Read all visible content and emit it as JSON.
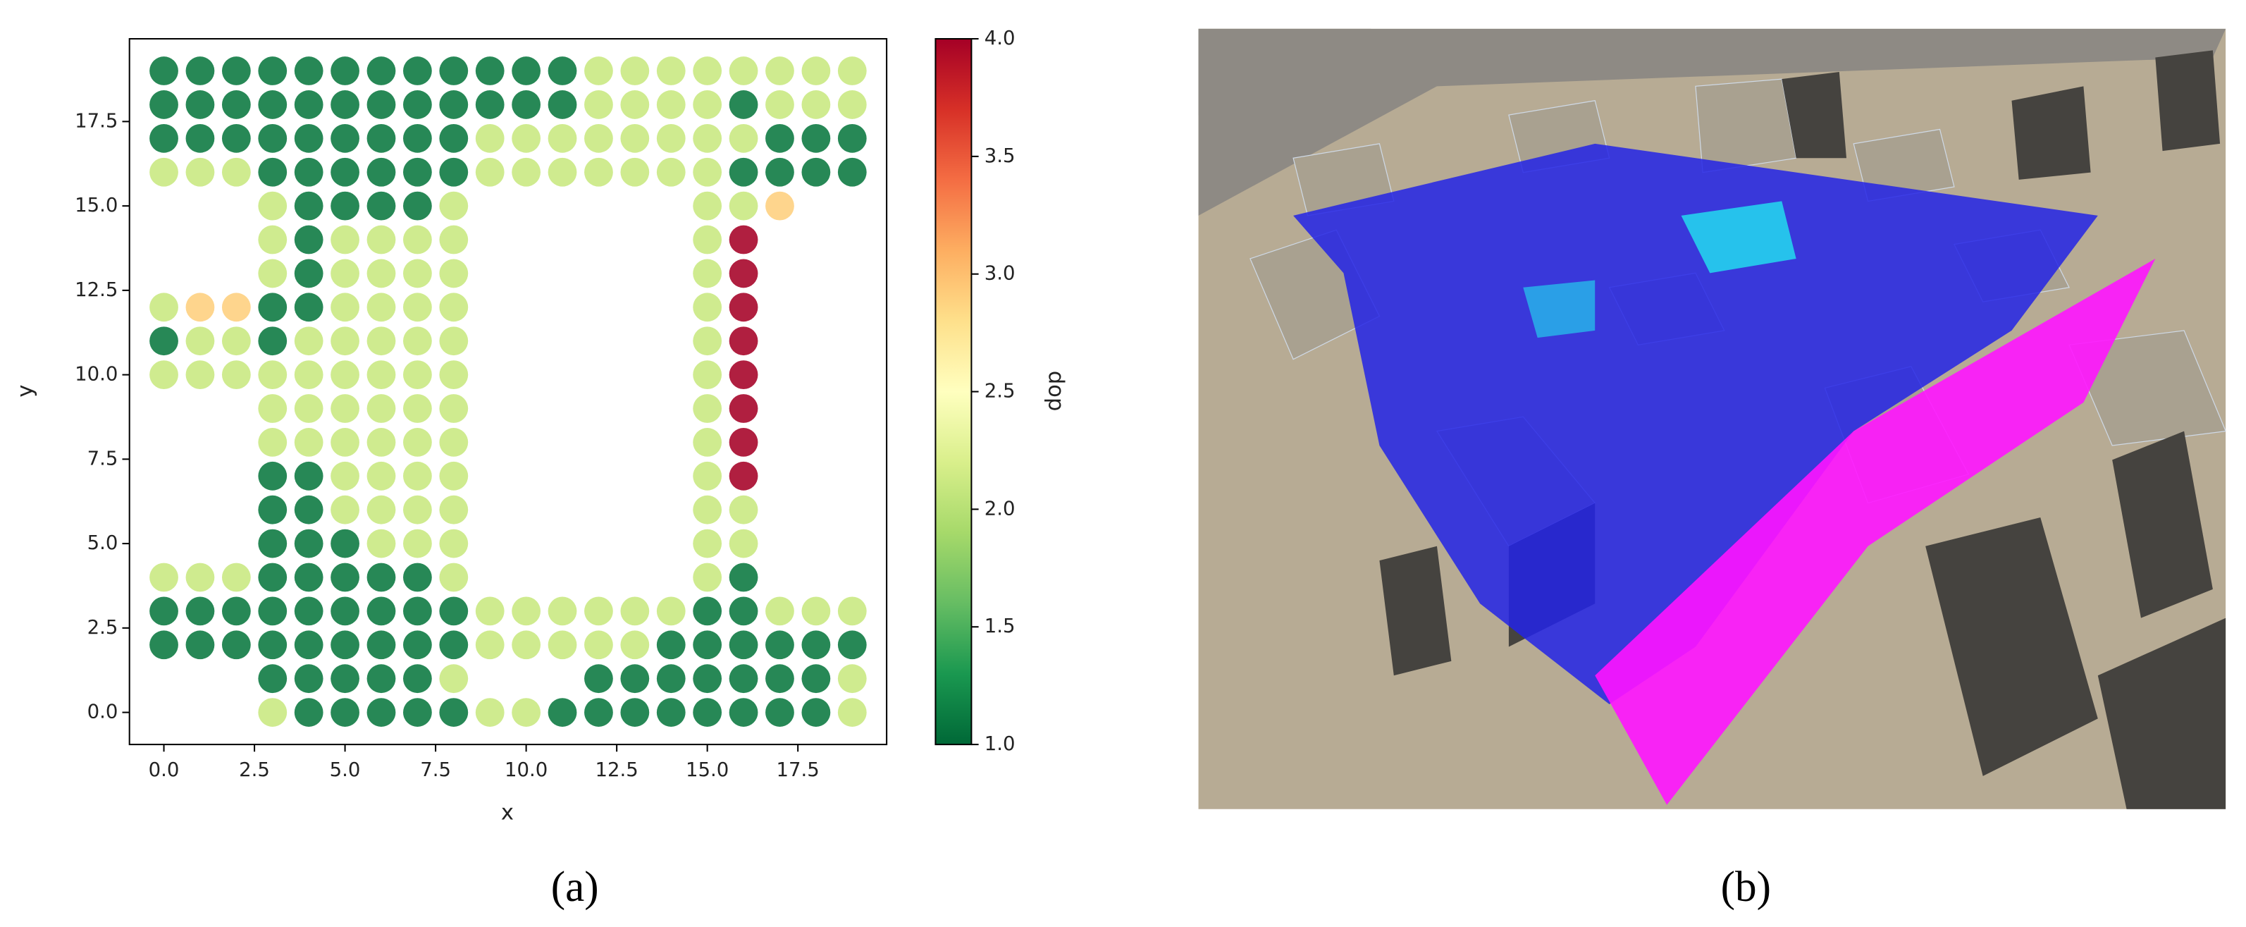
{
  "chart_data": {
    "type": "scatter",
    "xlabel": "x",
    "ylabel": "y",
    "xlim": [
      -0.95,
      19.95
    ],
    "ylim": [
      -0.95,
      19.95
    ],
    "xticks": [
      {
        "value": 0,
        "label": "0.0"
      },
      {
        "value": 2.5,
        "label": "2.5"
      },
      {
        "value": 5,
        "label": "5.0"
      },
      {
        "value": 7.5,
        "label": "7.5"
      },
      {
        "value": 10,
        "label": "10.0"
      },
      {
        "value": 12.5,
        "label": "12.5"
      },
      {
        "value": 15,
        "label": "15.0"
      },
      {
        "value": 17.5,
        "label": "17.5"
      }
    ],
    "yticks": [
      {
        "value": 0,
        "label": "0.0"
      },
      {
        "value": 2.5,
        "label": "2.5"
      },
      {
        "value": 5,
        "label": "5.0"
      },
      {
        "value": 7.5,
        "label": "7.5"
      },
      {
        "value": 10,
        "label": "10.0"
      },
      {
        "value": 12.5,
        "label": "12.5"
      },
      {
        "value": 15,
        "label": "15.0"
      },
      {
        "value": 17.5,
        "label": "17.5"
      }
    ],
    "colormap": "RdYlGn_r",
    "colorbar": {
      "label": "dop",
      "lim": [
        1,
        4
      ],
      "ticks": [
        {
          "value": 1,
          "label": "1.0"
        },
        {
          "value": 1.5,
          "label": "1.5"
        },
        {
          "value": 2,
          "label": "2.0"
        },
        {
          "value": 2.5,
          "label": "2.5"
        },
        {
          "value": 3,
          "label": "3.0"
        },
        {
          "value": 3.5,
          "label": "3.5"
        },
        {
          "value": 4,
          "label": "4.0"
        }
      ]
    },
    "x": [
      0,
      1,
      2,
      3,
      4,
      5,
      6,
      7,
      8,
      9,
      10,
      11,
      12,
      13,
      14,
      15,
      16,
      17,
      18,
      19,
      0,
      1,
      2,
      3,
      4,
      5,
      6,
      7,
      8,
      9,
      10,
      11,
      12,
      13,
      14,
      15,
      16,
      17,
      18,
      19,
      0,
      1,
      2,
      3,
      4,
      5,
      6,
      7,
      8,
      9,
      10,
      11,
      12,
      13,
      14,
      15,
      16,
      17,
      18,
      19,
      0,
      1,
      2,
      3,
      4,
      5,
      6,
      7,
      8,
      9,
      10,
      11,
      12,
      13,
      14,
      15,
      16,
      17,
      18,
      19,
      3,
      4,
      5,
      6,
      7,
      8,
      15,
      16,
      17,
      3,
      4,
      5,
      6,
      7,
      8,
      15,
      16,
      3,
      4,
      5,
      6,
      7,
      8,
      15,
      16,
      0,
      1,
      2,
      3,
      4,
      5,
      6,
      7,
      8,
      15,
      16,
      0,
      1,
      2,
      3,
      4,
      5,
      6,
      7,
      8,
      15,
      16,
      0,
      1,
      2,
      3,
      4,
      5,
      6,
      7,
      8,
      15,
      16,
      3,
      4,
      5,
      6,
      7,
      8,
      15,
      16,
      3,
      4,
      5,
      6,
      7,
      8,
      15,
      16,
      3,
      4,
      5,
      6,
      7,
      8,
      15,
      16,
      3,
      4,
      5,
      6,
      7,
      8,
      15,
      16,
      3,
      4,
      5,
      6,
      7,
      8,
      15,
      16,
      0,
      1,
      2,
      3,
      4,
      5,
      6,
      7,
      8,
      15,
      16,
      0,
      1,
      2,
      3,
      4,
      5,
      6,
      7,
      8,
      9,
      10,
      11,
      12,
      13,
      14,
      15,
      16,
      17,
      18,
      19,
      0,
      1,
      2,
      3,
      4,
      5,
      6,
      7,
      8,
      9,
      10,
      11,
      12,
      13,
      14,
      15,
      16,
      17,
      18,
      19,
      3,
      4,
      5,
      6,
      7,
      8,
      12,
      13,
      14,
      15,
      16,
      17,
      18,
      19,
      3,
      4,
      5,
      6,
      7,
      8,
      9,
      10,
      11,
      12,
      13,
      14,
      15,
      16,
      17,
      18,
      19
    ],
    "y": [
      19,
      19,
      19,
      19,
      19,
      19,
      19,
      19,
      19,
      19,
      19,
      19,
      19,
      19,
      19,
      19,
      19,
      19,
      19,
      19,
      18,
      18,
      18,
      18,
      18,
      18,
      18,
      18,
      18,
      18,
      18,
      18,
      18,
      18,
      18,
      18,
      18,
      18,
      18,
      18,
      17,
      17,
      17,
      17,
      17,
      17,
      17,
      17,
      17,
      17,
      17,
      17,
      17,
      17,
      17,
      17,
      17,
      17,
      17,
      17,
      16,
      16,
      16,
      16,
      16,
      16,
      16,
      16,
      16,
      16,
      16,
      16,
      16,
      16,
      16,
      16,
      16,
      16,
      16,
      16,
      15,
      15,
      15,
      15,
      15,
      15,
      15,
      15,
      15,
      14,
      14,
      14,
      14,
      14,
      14,
      14,
      14,
      13,
      13,
      13,
      13,
      13,
      13,
      13,
      13,
      12,
      12,
      12,
      12,
      12,
      12,
      12,
      12,
      12,
      12,
      12,
      11,
      11,
      11,
      11,
      11,
      11,
      11,
      11,
      11,
      11,
      11,
      10,
      10,
      10,
      10,
      10,
      10,
      10,
      10,
      10,
      10,
      10,
      9,
      9,
      9,
      9,
      9,
      9,
      9,
      9,
      8,
      8,
      8,
      8,
      8,
      8,
      8,
      8,
      7,
      7,
      7,
      7,
      7,
      7,
      7,
      7,
      6,
      6,
      6,
      6,
      6,
      6,
      6,
      6,
      5,
      5,
      5,
      5,
      5,
      5,
      5,
      5,
      4,
      4,
      4,
      4,
      4,
      4,
      4,
      4,
      4,
      4,
      4,
      3,
      3,
      3,
      3,
      3,
      3,
      3,
      3,
      3,
      3,
      3,
      3,
      3,
      3,
      3,
      3,
      3,
      3,
      3,
      3,
      2,
      2,
      2,
      2,
      2,
      2,
      2,
      2,
      2,
      2,
      2,
      2,
      2,
      2,
      2,
      2,
      2,
      2,
      2,
      2,
      1,
      1,
      1,
      1,
      1,
      1,
      1,
      1,
      1,
      1,
      1,
      1,
      1,
      1,
      0,
      0,
      0,
      0,
      0,
      0,
      0,
      0,
      0,
      0,
      0,
      0,
      0,
      0,
      0,
      0,
      0
    ],
    "values": [
      1.1,
      1.1,
      1.1,
      1.1,
      1.1,
      1.1,
      1.1,
      1.1,
      1.1,
      1.1,
      1.1,
      1.1,
      2.1,
      2.1,
      2.1,
      2.1,
      2.1,
      2.1,
      2.1,
      2.1,
      1.1,
      1.1,
      1.1,
      1.1,
      1.1,
      1.1,
      1.1,
      1.1,
      1.1,
      1.1,
      1.1,
      1.1,
      2.1,
      2.1,
      2.1,
      2.1,
      1.1,
      2.1,
      2.1,
      2.1,
      1.1,
      1.1,
      1.1,
      1.1,
      1.1,
      1.1,
      1.1,
      1.1,
      1.1,
      2.1,
      2.1,
      2.1,
      2.1,
      2.1,
      2.1,
      2.1,
      2.1,
      1.1,
      1.1,
      1.1,
      2.1,
      2.1,
      2.1,
      1.1,
      1.1,
      1.1,
      1.1,
      1.1,
      1.1,
      2.1,
      2.1,
      2.1,
      2.1,
      2.1,
      2.1,
      2.1,
      1.1,
      1.1,
      1.1,
      1.1,
      2.1,
      1.1,
      1.1,
      1.1,
      1.1,
      2.1,
      2.1,
      2.1,
      2.9,
      2.1,
      1.1,
      2.1,
      2.1,
      2.1,
      2.1,
      2.1,
      4.0,
      2.1,
      1.1,
      2.1,
      2.1,
      2.1,
      2.1,
      2.1,
      4.0,
      2.1,
      2.9,
      2.9,
      1.1,
      1.1,
      2.1,
      2.1,
      2.1,
      2.1,
      2.1,
      4.0,
      1.1,
      2.1,
      2.1,
      1.1,
      2.1,
      2.1,
      2.1,
      2.1,
      2.1,
      2.1,
      4.0,
      2.1,
      2.1,
      2.1,
      2.1,
      2.1,
      2.1,
      2.1,
      2.1,
      2.1,
      2.1,
      4.0,
      2.1,
      2.1,
      2.1,
      2.1,
      2.1,
      2.1,
      2.1,
      4.0,
      2.1,
      2.1,
      2.1,
      2.1,
      2.1,
      2.1,
      2.1,
      4.0,
      1.1,
      1.1,
      2.1,
      2.1,
      2.1,
      2.1,
      2.1,
      4.0,
      1.1,
      1.1,
      2.1,
      2.1,
      2.1,
      2.1,
      2.1,
      2.1,
      1.1,
      1.1,
      1.1,
      2.1,
      2.1,
      2.1,
      2.1,
      2.1,
      2.1,
      2.1,
      2.1,
      1.1,
      1.1,
      1.1,
      1.1,
      1.1,
      2.1,
      2.1,
      1.1,
      1.1,
      1.1,
      1.1,
      1.1,
      1.1,
      1.1,
      1.1,
      1.1,
      1.1,
      2.1,
      2.1,
      2.1,
      2.1,
      2.1,
      2.1,
      1.1,
      1.1,
      2.1,
      2.1,
      2.1,
      1.1,
      1.1,
      1.1,
      1.1,
      1.1,
      1.1,
      1.1,
      1.1,
      1.1,
      2.1,
      2.1,
      2.1,
      2.1,
      2.1,
      1.1,
      1.1,
      1.1,
      1.1,
      1.1,
      1.1,
      1.1,
      1.1,
      1.1,
      1.1,
      1.1,
      2.1,
      1.1,
      1.1,
      1.1,
      1.1,
      1.1,
      1.1,
      1.1,
      2.1,
      2.1,
      1.1,
      1.1,
      1.1,
      1.1,
      1.1,
      2.1,
      2.1,
      1.1,
      1.1,
      1.1,
      1.1,
      1.1,
      1.1,
      1.1,
      1.1,
      2.1
    ]
  },
  "panels": [
    {
      "caption": "(a)"
    },
    {
      "caption": "(b)"
    }
  ]
}
